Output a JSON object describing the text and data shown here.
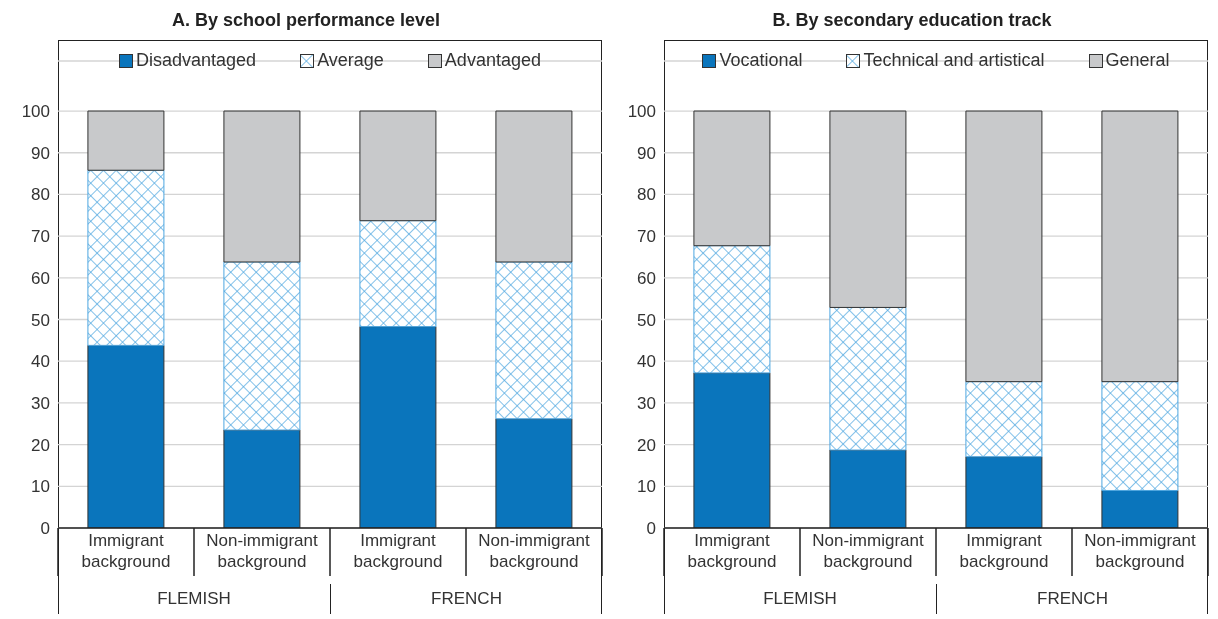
{
  "chart_data": [
    {
      "type": "bar",
      "title": "A. By school performance level",
      "categories": [
        "Immigrant background",
        "Non-immigrant background",
        "Immigrant background",
        "Non-immigrant background"
      ],
      "stacked": true,
      "series": [
        {
          "name": "Disadvantaged",
          "color": "#0a75bc",
          "values": [
            43.8,
            23.5,
            48.3,
            26.2
          ]
        },
        {
          "name": "Average",
          "color": "#4ea6e0",
          "values": [
            42.0,
            40.3,
            25.4,
            37.6
          ]
        },
        {
          "name": "Advantaged",
          "color": "#c8c9cb",
          "values": [
            14.2,
            36.2,
            26.3,
            36.2
          ]
        }
      ],
      "ylim": [
        0,
        112
      ],
      "yticks": [
        0,
        10,
        20,
        30,
        40,
        50,
        60,
        70,
        80,
        90,
        100
      ],
      "grid": "y",
      "legend": "top",
      "annotations": [
        "FLEMISH",
        "FRENCH"
      ]
    },
    {
      "type": "bar",
      "title": "B. By secondary education track",
      "categories": [
        "Immigrant background",
        "Non-immigrant background",
        "Immigrant background",
        "Non-immigrant background"
      ],
      "stacked": true,
      "series": [
        {
          "name": "Vocational",
          "color": "#0a75bc",
          "values": [
            37.2,
            18.7,
            17.1,
            9.0
          ]
        },
        {
          "name": "Technical and artistical",
          "color": "#4ea6e0",
          "values": [
            30.5,
            34.2,
            18.0,
            26.1
          ]
        },
        {
          "name": "General",
          "color": "#c8c9cb",
          "values": [
            32.3,
            47.1,
            64.9,
            64.9
          ]
        }
      ],
      "ylim": [
        0,
        112
      ],
      "yticks": [
        0,
        10,
        20,
        30,
        40,
        50,
        60,
        70,
        80,
        90,
        100
      ],
      "grid": "y",
      "legend": "top",
      "annotations": [
        "FLEMISH",
        "FRENCH"
      ]
    }
  ]
}
